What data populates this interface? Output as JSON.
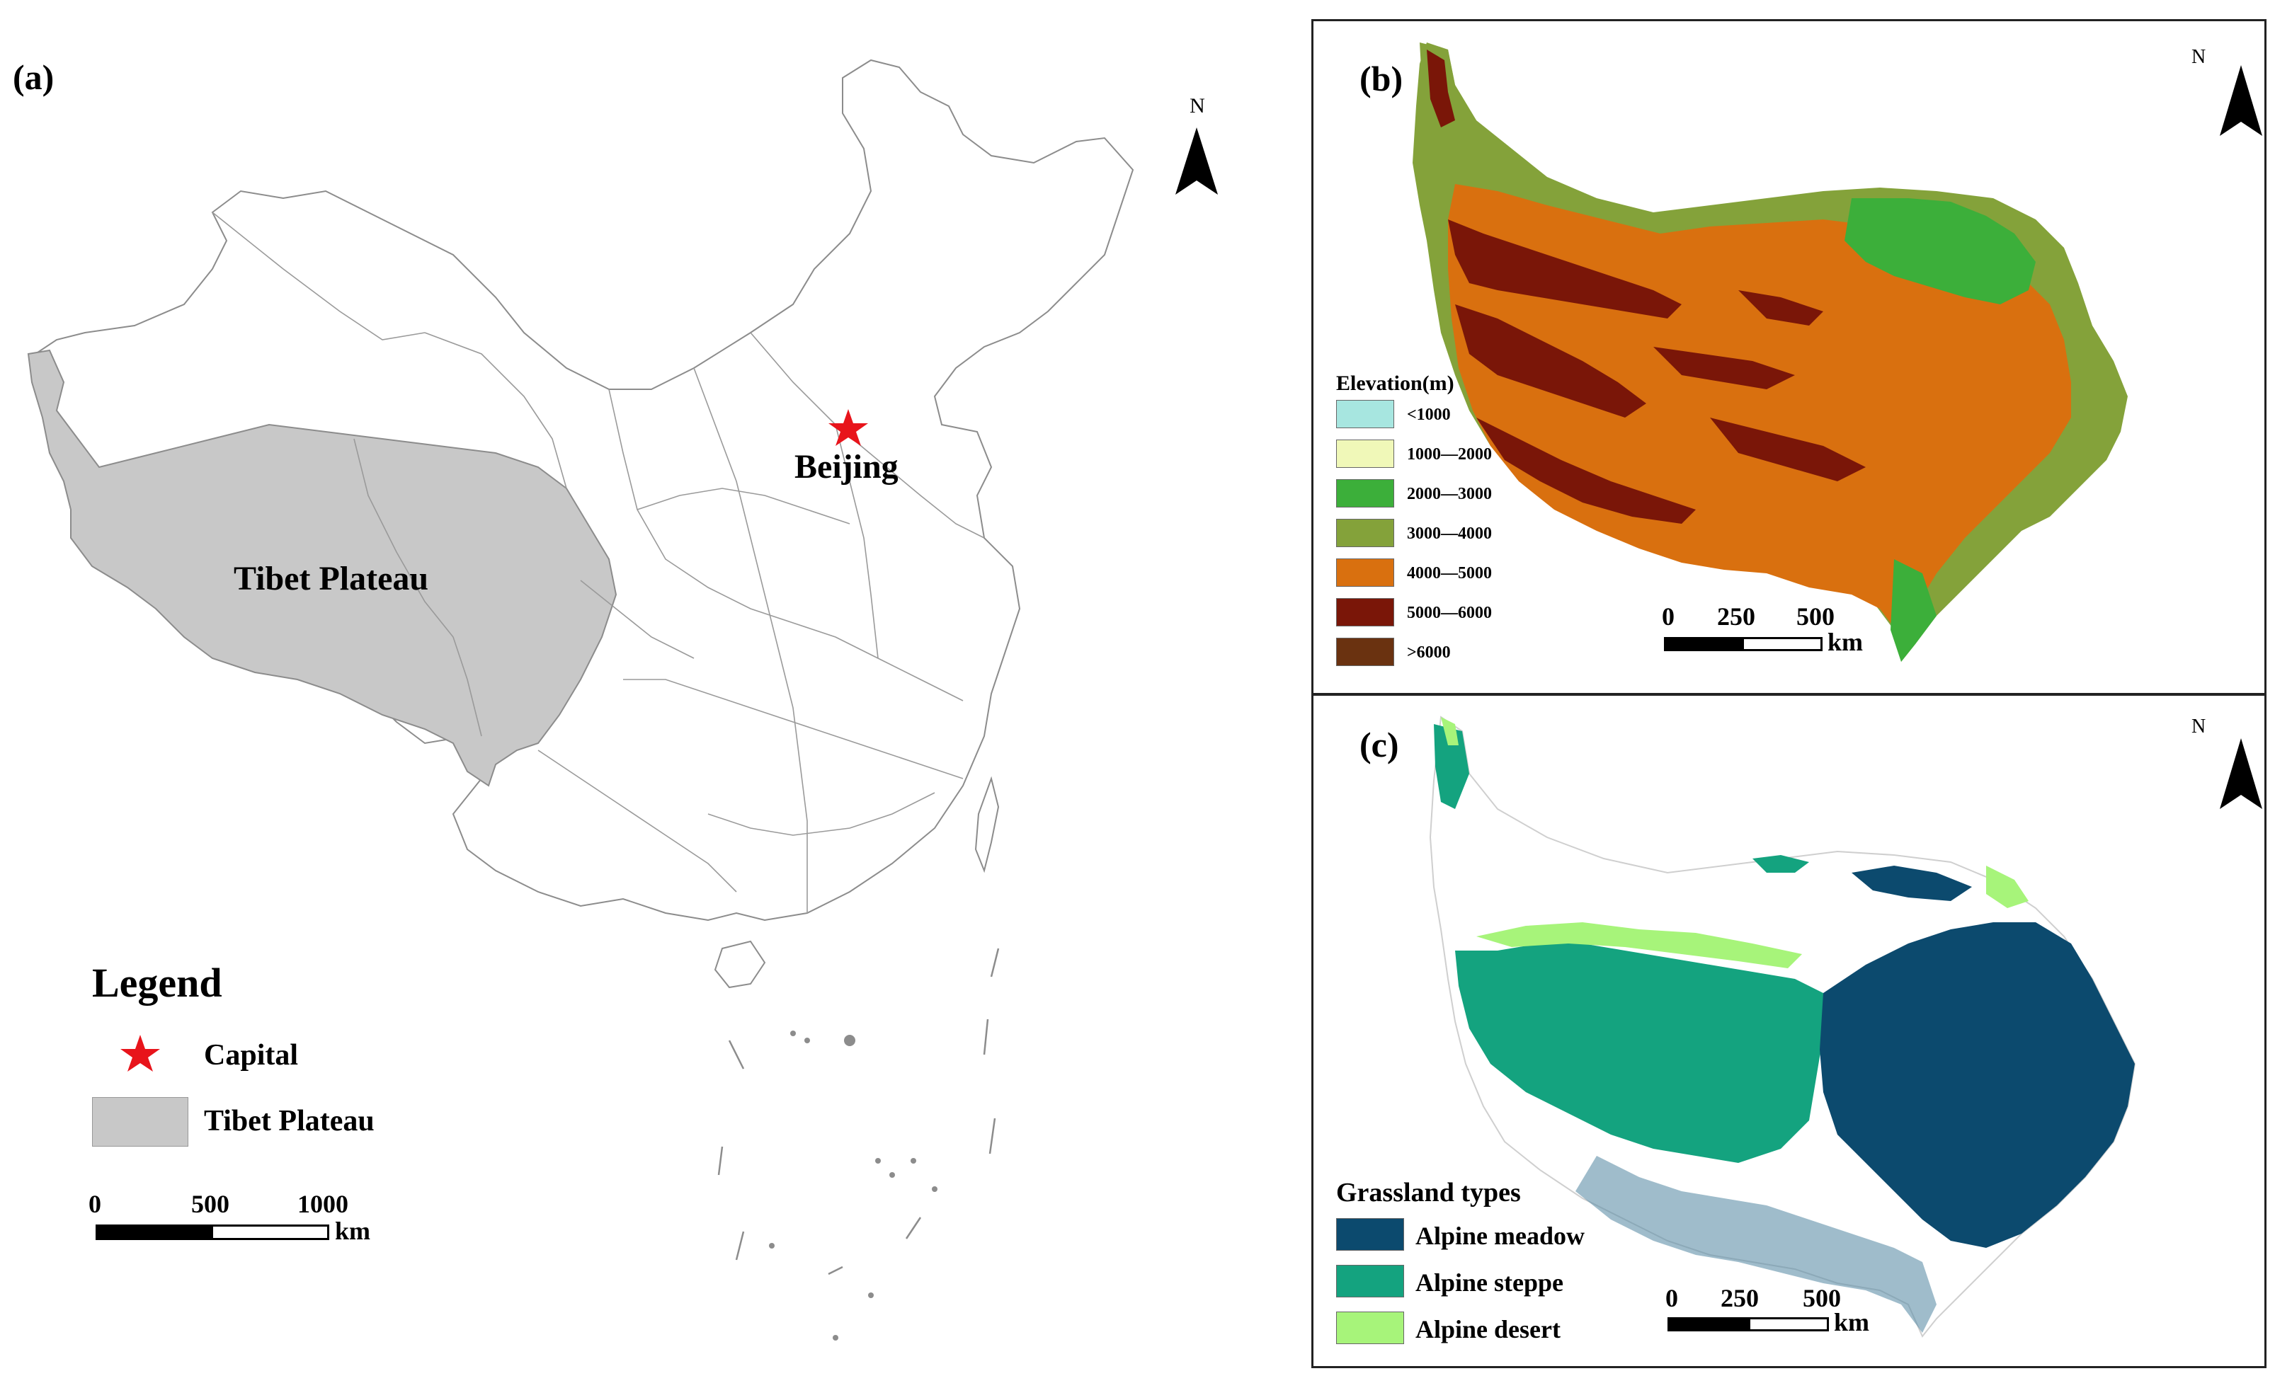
{
  "panel_a": {
    "label": "(a)",
    "north": "N",
    "city_label": "Beijing",
    "region_label": "Tibet Plateau",
    "legend": {
      "title": "Legend",
      "items": [
        {
          "label": "Capital",
          "symbol": "red-star-icon",
          "color": "#e8141b"
        },
        {
          "label": "Tibet Plateau",
          "symbol": "gray-fill",
          "color": "#c8c8c8"
        }
      ]
    },
    "scale": {
      "ticks": [
        "0",
        "500",
        "1000"
      ],
      "unit": "km"
    }
  },
  "panel_b": {
    "label": "(b)",
    "north": "N",
    "legend": {
      "title": "Elevation(m)",
      "items": [
        {
          "label": "<1000",
          "color": "#a7e6e0"
        },
        {
          "label": "1000—2000",
          "color": "#f0f8b8"
        },
        {
          "label": "2000—3000",
          "color": "#3caf3a"
        },
        {
          "label": "3000—4000",
          "color": "#84a23a"
        },
        {
          "label": "4000—5000",
          "color": "#d9700f"
        },
        {
          "label": "5000—6000",
          "color": "#7a1608"
        },
        {
          "label": ">6000",
          "color": "#6a3210"
        }
      ]
    },
    "scale": {
      "ticks": [
        "0",
        "250",
        "500"
      ],
      "unit": "km"
    }
  },
  "panel_c": {
    "label": "(c)",
    "north": "N",
    "legend": {
      "title": "Grassland types",
      "items": [
        {
          "label": "Alpine meadow",
          "color": "#0c4a6e"
        },
        {
          "label": "Alpine steppe",
          "color": "#14a37f"
        },
        {
          "label": "Alpine desert",
          "color": "#a7f47a"
        }
      ]
    },
    "scale": {
      "ticks": [
        "0",
        "250",
        "500"
      ],
      "unit": "km"
    }
  }
}
